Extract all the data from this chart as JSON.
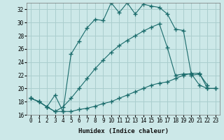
{
  "xlabel": "Humidex (Indice chaleur)",
  "bg_color": "#cce8e8",
  "grid_color": "#aacece",
  "line_color": "#1a6b6b",
  "xlim": [
    -0.5,
    23.5
  ],
  "ylim": [
    16,
    33
  ],
  "xticks": [
    0,
    1,
    2,
    3,
    4,
    5,
    6,
    7,
    8,
    9,
    10,
    11,
    12,
    13,
    14,
    15,
    16,
    17,
    18,
    19,
    20,
    21,
    22,
    23
  ],
  "yticks": [
    16,
    18,
    20,
    22,
    24,
    26,
    28,
    30,
    32
  ],
  "line1_x": [
    0,
    1,
    2,
    3,
    4,
    5,
    6,
    7,
    8,
    9,
    10,
    11,
    12,
    13,
    14,
    15,
    16,
    17,
    18,
    19,
    20,
    21,
    22
  ],
  "line1_y": [
    18.5,
    18.0,
    17.2,
    19.0,
    16.5,
    25.2,
    27.2,
    29.2,
    30.5,
    30.3,
    33.0,
    31.5,
    33.0,
    31.3,
    32.8,
    32.5,
    32.3,
    31.3,
    29.0,
    28.8,
    22.0,
    22.2,
    20.5
  ],
  "line2_x": [
    0,
    1,
    2,
    3,
    4,
    5,
    6,
    7,
    8,
    9,
    10,
    11,
    12,
    13,
    14,
    15,
    16,
    17,
    18,
    19,
    20,
    21,
    22,
    23
  ],
  "line2_y": [
    18.5,
    18.0,
    17.2,
    16.5,
    17.2,
    18.5,
    20.0,
    21.5,
    23.0,
    24.3,
    25.5,
    26.5,
    27.3,
    28.0,
    28.7,
    29.3,
    29.8,
    26.2,
    22.0,
    22.2,
    22.2,
    20.5,
    20.0,
    20.0
  ],
  "line3_x": [
    0,
    1,
    2,
    3,
    4,
    5,
    6,
    7,
    8,
    9,
    10,
    11,
    12,
    13,
    14,
    15,
    16,
    17,
    18,
    19,
    20,
    21,
    22,
    23
  ],
  "line3_y": [
    18.5,
    18.0,
    17.2,
    16.5,
    16.5,
    16.5,
    16.8,
    17.0,
    17.3,
    17.7,
    18.0,
    18.5,
    19.0,
    19.5,
    20.0,
    20.5,
    20.8,
    21.0,
    21.5,
    22.0,
    22.3,
    22.3,
    20.0,
    20.0
  ]
}
